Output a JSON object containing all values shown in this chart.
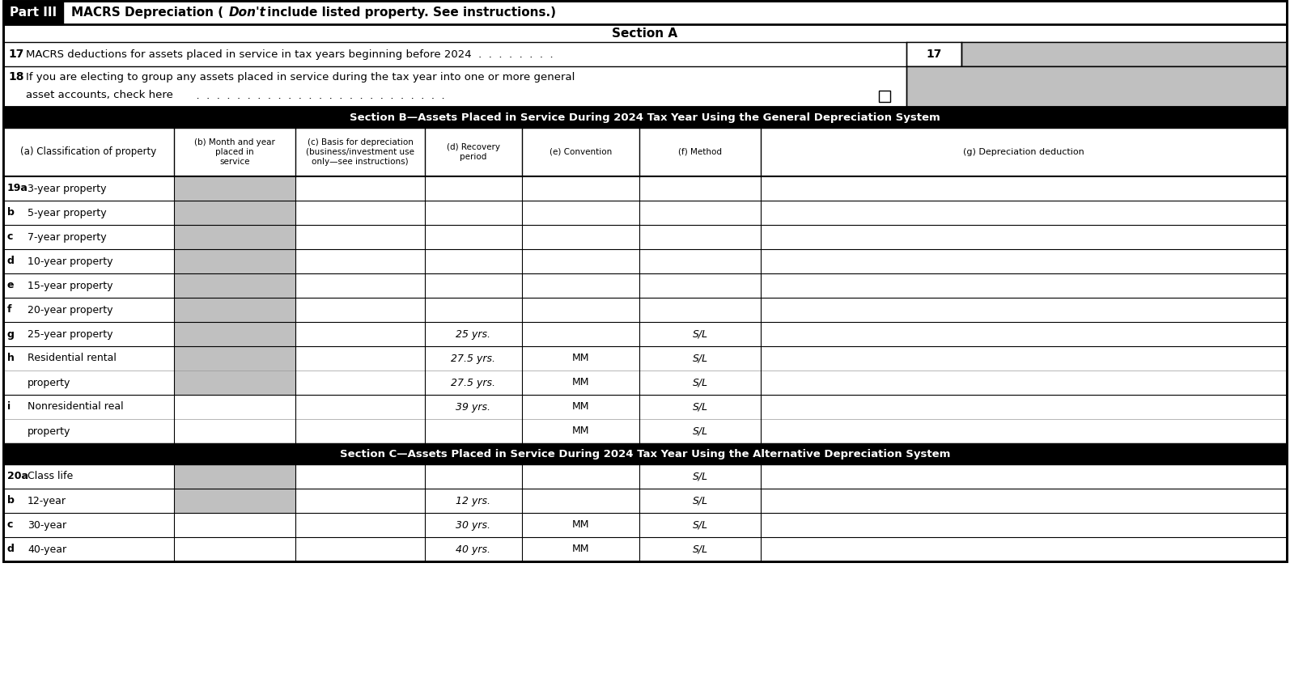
{
  "section_b": "Section B—Assets Placed in Service During 2024 Tax Year Using the General Depreciation System",
  "section_c": "Section C—Assets Placed in Service During 2024 Tax Year Using the Alternative Depreciation System",
  "col_headers": [
    "(a) Classification of property",
    "(b) Month and year\nplaced in\nservice",
    "(c) Basis for depreciation\n(business/investment use\nonly—see instructions)",
    "(d) Recovery\nperiod",
    "(e) Convention",
    "(f) Method",
    "(g) Depreciation deduction"
  ],
  "section_b_rows": [
    {
      "label": "19a",
      "text": "3-year property",
      "recovery": "",
      "convention": "",
      "method": "",
      "shaded_b": true,
      "two_rows": false
    },
    {
      "label": "b",
      "text": "5-year property",
      "recovery": "",
      "convention": "",
      "method": "",
      "shaded_b": true,
      "two_rows": false
    },
    {
      "label": "c",
      "text": "7-year property",
      "recovery": "",
      "convention": "",
      "method": "",
      "shaded_b": true,
      "two_rows": false
    },
    {
      "label": "d",
      "text": "10-year property",
      "recovery": "",
      "convention": "",
      "method": "",
      "shaded_b": true,
      "two_rows": false
    },
    {
      "label": "e",
      "text": "15-year property",
      "recovery": "",
      "convention": "",
      "method": "",
      "shaded_b": true,
      "two_rows": false
    },
    {
      "label": "f",
      "text": "20-year property",
      "recovery": "",
      "convention": "",
      "method": "",
      "shaded_b": true,
      "two_rows": false
    },
    {
      "label": "g",
      "text": "25-year property",
      "recovery": "25 yrs.",
      "convention": "",
      "method": "S/L",
      "shaded_b": true,
      "two_rows": false
    },
    {
      "label": "h",
      "text": "Residential rental",
      "recovery": "27.5 yrs.",
      "convention": "MM",
      "method": "S/L",
      "shaded_b": true,
      "two_rows": true,
      "text2": "property",
      "recovery2": "27.5 yrs.",
      "convention2": "MM",
      "method2": "S/L"
    },
    {
      "label": "i",
      "text": "Nonresidential real",
      "recovery": "39 yrs.",
      "convention": "MM",
      "method": "S/L",
      "shaded_b": false,
      "two_rows": true,
      "text2": "property",
      "recovery2": "",
      "convention2": "MM",
      "method2": "S/L"
    }
  ],
  "section_c_rows": [
    {
      "label": "20a",
      "text": "Class life",
      "recovery": "",
      "convention": "",
      "method": "S/L",
      "shaded_b": true,
      "two_rows": false
    },
    {
      "label": "b",
      "text": "12-year",
      "recovery": "12 yrs.",
      "convention": "",
      "method": "S/L",
      "shaded_b": true,
      "two_rows": false
    },
    {
      "label": "c",
      "text": "30-year",
      "recovery": "30 yrs.",
      "convention": "MM",
      "method": "S/L",
      "shaded_b": false,
      "two_rows": false
    },
    {
      "label": "d",
      "text": "40-year",
      "recovery": "40 yrs.",
      "convention": "MM",
      "method": "S/L",
      "shaded_b": false,
      "two_rows": false
    }
  ],
  "shade_color": "#c0c0c0",
  "bg_color": "#ffffff"
}
